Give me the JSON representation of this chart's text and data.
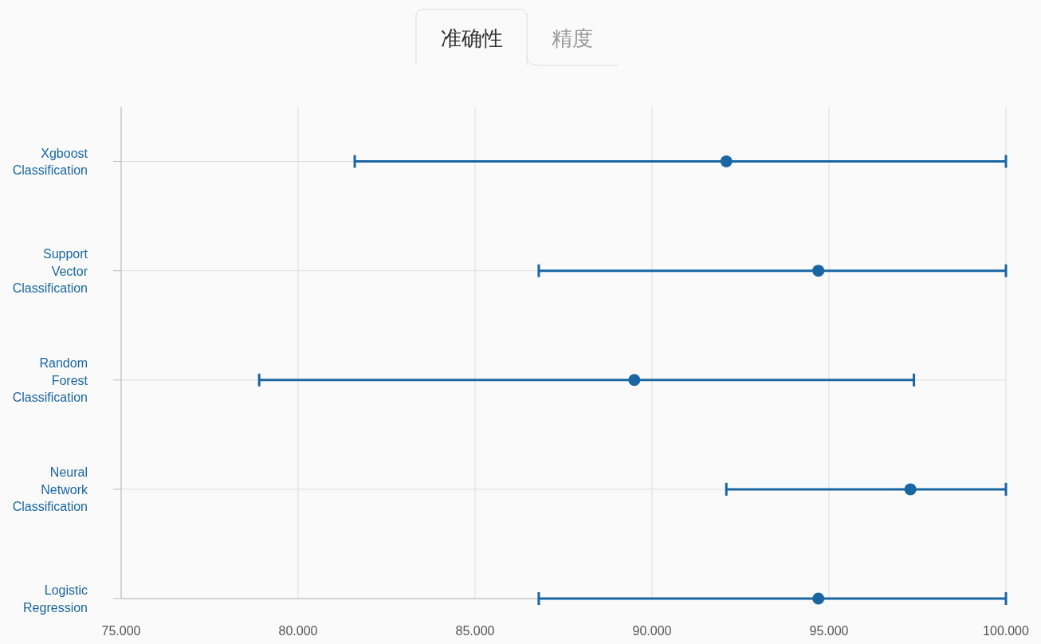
{
  "chart_data": {
    "type": "scatter",
    "orientation": "horizontal",
    "annotations": [
      "准确性",
      "精度"
    ],
    "categories": [
      "Xgboost Classification",
      "Support Vector Classification",
      "Random Forest Classification",
      "Neural Network Classification",
      "Logistic Regression"
    ],
    "values": [
      92.1,
      94.7,
      89.5,
      97.3,
      94.7
    ],
    "errors": [
      [
        81.6,
        100
      ],
      [
        86.8,
        100
      ],
      [
        78.9,
        97.4
      ],
      [
        92.1,
        100
      ],
      [
        86.8,
        100
      ]
    ],
    "color": "#1a66a3",
    "marker": "circle",
    "xlim": [
      75,
      100
    ],
    "xticks": [
      {
        "value": 75,
        "label": "75.000"
      },
      {
        "value": 80,
        "label": "80.000"
      },
      {
        "value": 85,
        "label": "85.000"
      },
      {
        "value": 90,
        "label": "90.000"
      },
      {
        "value": 95,
        "label": "95.000"
      },
      {
        "value": 100,
        "label": "100.000"
      }
    ],
    "grid": true
  }
}
